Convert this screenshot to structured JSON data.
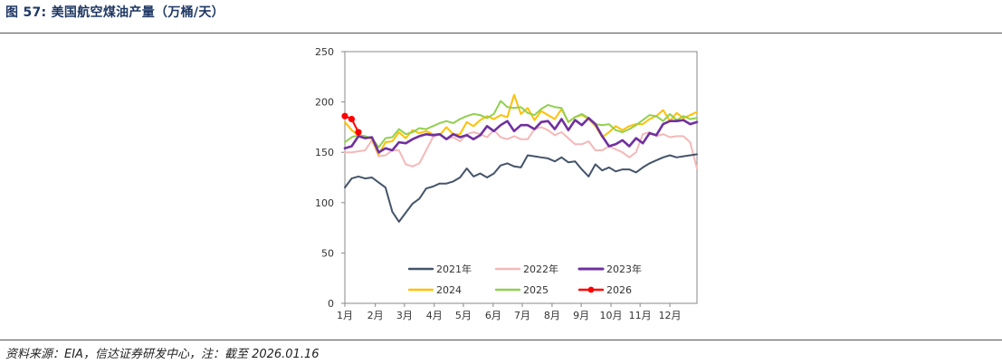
{
  "header": {
    "title": "图 57:  美国航空煤油产量（万桶/天）"
  },
  "footer": {
    "source": "资料来源：EIA，信达证券研发中心，注：截至 2026.01.16"
  },
  "chart_data": {
    "type": "line",
    "title": "美国航空煤油产量（万桶/天）",
    "xlabel": "",
    "ylabel": "",
    "ylim": [
      0,
      250
    ],
    "yticks": [
      0,
      50,
      100,
      150,
      200,
      250
    ],
    "xlim": [
      1,
      53
    ],
    "xtick_labels": [
      {
        "label": "1月",
        "week": 1
      },
      {
        "label": "2月",
        "week": 5.5
      },
      {
        "label": "3月",
        "week": 9.8
      },
      {
        "label": "4月",
        "week": 14.2
      },
      {
        "label": "5月",
        "week": 18.5
      },
      {
        "label": "6月",
        "week": 22.9
      },
      {
        "label": "7月",
        "week": 27.2
      },
      {
        "label": "8月",
        "week": 31.6
      },
      {
        "label": "9月",
        "week": 35.9
      },
      {
        "label": "10月",
        "week": 40.3
      },
      {
        "label": "11月",
        "week": 44.6
      },
      {
        "label": "12月",
        "week": 49.0
      }
    ],
    "grid": false,
    "legend": "bottom-center inside plot",
    "series": [
      {
        "name": "2021年",
        "color": "#44546a",
        "width": 2,
        "values": [
          115,
          124,
          126,
          124,
          125,
          120,
          115,
          91,
          81,
          90,
          99,
          104,
          114,
          116,
          119,
          119,
          121,
          125,
          134,
          126,
          129,
          125,
          129,
          137,
          139,
          136,
          135,
          147,
          146,
          145,
          144,
          141,
          145,
          140,
          141,
          133,
          126,
          138,
          132,
          135,
          131,
          133,
          133,
          130,
          135,
          139,
          142,
          145,
          147,
          145,
          146,
          147,
          148
        ]
      },
      {
        "name": "2022年",
        "color": "#f4b8b8",
        "width": 2,
        "values": [
          150,
          150,
          151,
          152,
          162,
          146,
          147,
          152,
          152,
          138,
          136,
          139,
          152,
          165,
          168,
          163,
          165,
          161,
          168,
          170,
          168,
          165,
          172,
          165,
          163,
          166,
          163,
          163,
          173,
          175,
          172,
          167,
          170,
          164,
          158,
          158,
          161,
          152,
          152,
          156,
          153,
          150,
          145,
          150,
          168,
          170,
          166,
          168,
          165,
          166,
          166,
          160,
          134
        ]
      },
      {
        "name": "2023年",
        "color": "#7030a0",
        "width": 2.6,
        "values": [
          154,
          156,
          166,
          164,
          165,
          150,
          154,
          152,
          160,
          159,
          163,
          166,
          168,
          167,
          168,
          163,
          168,
          165,
          167,
          163,
          167,
          176,
          171,
          177,
          181,
          171,
          177,
          177,
          173,
          180,
          181,
          173,
          183,
          172,
          182,
          177,
          184,
          178,
          166,
          156,
          158,
          162,
          156,
          164,
          159,
          169,
          167,
          178,
          181,
          181,
          182,
          178,
          180
        ]
      },
      {
        "name": "2024",
        "color": "#ffc000",
        "width": 2,
        "values": [
          180,
          172,
          167,
          166,
          163,
          148,
          160,
          161,
          170,
          164,
          172,
          169,
          171,
          168,
          167,
          175,
          168,
          168,
          180,
          176,
          182,
          186,
          183,
          187,
          185,
          207,
          188,
          194,
          182,
          191,
          187,
          183,
          193,
          180,
          185,
          187,
          183,
          176,
          165,
          170,
          176,
          172,
          176,
          178,
          178,
          183,
          186,
          192,
          181,
          189,
          184,
          187,
          190
        ]
      },
      {
        "name": "2025",
        "color": "#92d050",
        "width": 2,
        "values": [
          160,
          165,
          167,
          166,
          164,
          155,
          164,
          165,
          173,
          168,
          170,
          174,
          173,
          176,
          179,
          181,
          179,
          183,
          186,
          188,
          187,
          184,
          188,
          201,
          195,
          194,
          195,
          189,
          187,
          193,
          197,
          195,
          194,
          180,
          185,
          188,
          184,
          178,
          177,
          178,
          172,
          170,
          173,
          177,
          182,
          187,
          186,
          181,
          188,
          182,
          186,
          183,
          184
        ]
      },
      {
        "name": "2026",
        "color": "#ff0000",
        "width": 2,
        "markers": true,
        "values": [
          186,
          183,
          170
        ]
      }
    ]
  }
}
